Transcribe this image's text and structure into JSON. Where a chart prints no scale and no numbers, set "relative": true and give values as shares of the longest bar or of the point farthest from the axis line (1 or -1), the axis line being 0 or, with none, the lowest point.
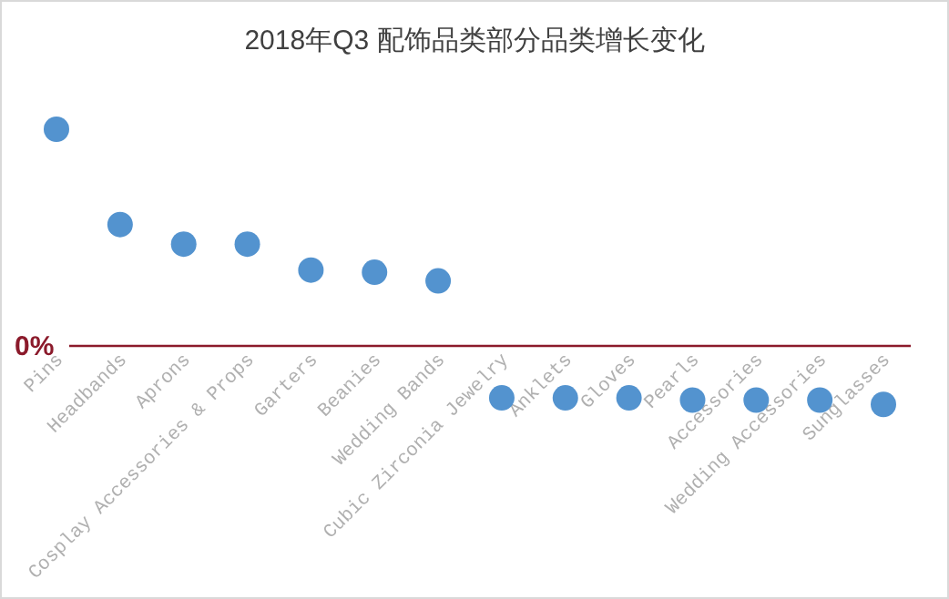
{
  "chart_data": {
    "type": "scatter",
    "title": "2018年Q3 配饰品类部分品类增长变化",
    "relative": true,
    "categories": [
      "Pins",
      "Headbands",
      "Aprons",
      "Cosplay Accessories & Props",
      "Garters",
      "Beanies",
      "Wedding Bands",
      "Cubic Zirconia Jewelry",
      "Anklets",
      "Gloves",
      "Pearls",
      "Accessories",
      "Wedding Accessories",
      "Sunglasses"
    ],
    "series": [
      {
        "color": "#5393cf",
        "values": [
          1,
          0.56,
          0.47,
          0.47,
          0.35,
          0.34,
          0.3,
          -0.24,
          -0.24,
          -0.24,
          -0.25,
          -0.25,
          -0.25,
          -0.27
        ]
      }
    ],
    "marker": "circle",
    "annotations": [
      "0%"
    ]
  }
}
